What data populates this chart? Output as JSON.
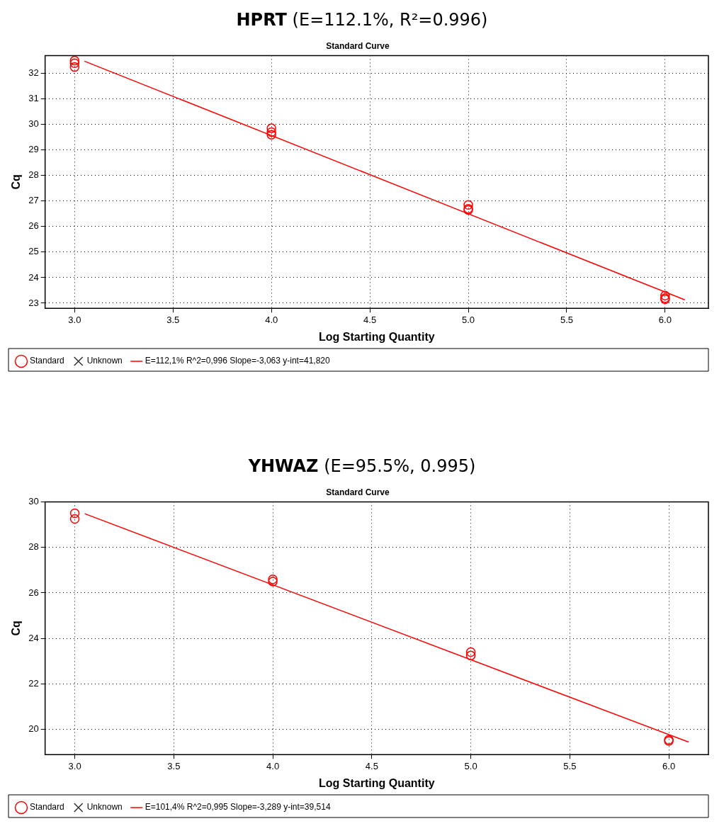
{
  "chart_data": [
    {
      "type": "scatter",
      "title": "HPRT (E=112.1%, R²=0.996)",
      "subtitle": "Standard Curve",
      "xlabel": "Log Starting Quantity",
      "ylabel": "Cq",
      "xlim": [
        2.85,
        6.22
      ],
      "xticks": [
        {
          "value": 3,
          "label": "3.0"
        },
        {
          "value": 3.5,
          "label": "3.5"
        },
        {
          "value": 4,
          "label": "4.0"
        },
        {
          "value": 4.5,
          "label": "4.5"
        },
        {
          "value": 5,
          "label": "5.0"
        },
        {
          "value": 5.5,
          "label": "5.5"
        },
        {
          "value": 6,
          "label": "6.0"
        }
      ],
      "ylim": [
        22.8,
        32.7
      ],
      "yticks": [
        23,
        24,
        25,
        26,
        27,
        28,
        29,
        30,
        31,
        32
      ],
      "grid": true,
      "legend": "bottom",
      "series": [
        {
          "name": "Standard",
          "type": "scatter",
          "marker": "circle",
          "color": "#ff0000",
          "x": [
            3,
            3,
            3,
            4,
            4,
            4,
            5,
            5,
            5,
            6,
            6,
            6
          ],
          "values": [
            32.5,
            32.4,
            32.25,
            29.85,
            29.7,
            29.6,
            26.85,
            26.7,
            26.65,
            23.3,
            23.2,
            23.15
          ]
        },
        {
          "name": "Unknown",
          "type": "scatter",
          "marker": "cross",
          "color": "#333333"
        },
        {
          "name": "E=112,1% R^2=0,996 Slope=-3,063 y-int=41,820",
          "type": "line",
          "marker": "none",
          "line_style": "solid",
          "color": "#ff0000",
          "x": [
            3.05,
            6.1
          ],
          "values": [
            32.48,
            23.13
          ]
        }
      ]
    },
    {
      "type": "scatter",
      "title": "YHWAZ (E=95.5%, 0.995)",
      "subtitle": "Standard Curve",
      "xlabel": "Log Starting Quantity",
      "ylabel": "Cq",
      "xlim": [
        2.85,
        6.2
      ],
      "xticks": [
        {
          "value": 3,
          "label": "3.0"
        },
        {
          "value": 3.5,
          "label": "3.5"
        },
        {
          "value": 4,
          "label": "4.0"
        },
        {
          "value": 4.5,
          "label": "4.5"
        },
        {
          "value": 5,
          "label": "5.0"
        },
        {
          "value": 5.5,
          "label": "5.5"
        },
        {
          "value": 6,
          "label": "6.0"
        }
      ],
      "ylim": [
        18.9,
        30
      ],
      "yticks": [
        20,
        22,
        24,
        26,
        28,
        30
      ],
      "grid": true,
      "legend": "bottom",
      "series": [
        {
          "name": "Standard",
          "type": "scatter",
          "marker": "circle",
          "color": "#ff0000",
          "x": [
            3,
            3,
            4,
            4,
            5,
            5,
            6,
            6
          ],
          "values": [
            29.5,
            29.25,
            26.6,
            26.5,
            23.4,
            23.25,
            19.55,
            19.5
          ]
        },
        {
          "name": "Unknown",
          "type": "scatter",
          "marker": "cross",
          "color": "#333333"
        },
        {
          "name": "E=101,4% R^2=0,995 Slope=-3,289 y-int=39,514",
          "type": "line",
          "marker": "none",
          "line_style": "solid",
          "color": "#ff0000",
          "x": [
            3.05,
            6.1
          ],
          "values": [
            29.48,
            19.45
          ]
        }
      ]
    }
  ]
}
